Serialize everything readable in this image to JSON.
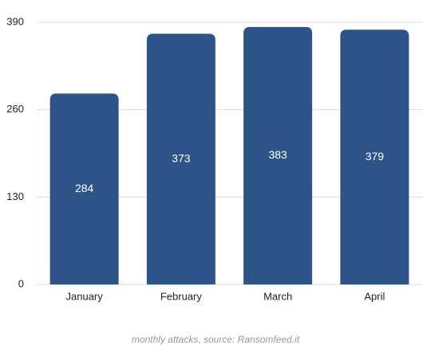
{
  "chart_data": {
    "type": "bar",
    "categories": [
      "January",
      "February",
      "March",
      "April"
    ],
    "values": [
      284,
      373,
      383,
      379
    ],
    "color": "#2d5489",
    "ylim": [
      0,
      390
    ],
    "yticks": [
      0,
      130,
      260,
      390
    ],
    "grid": true,
    "caption": "monthly attacks, source: Ransomfeed.it"
  }
}
